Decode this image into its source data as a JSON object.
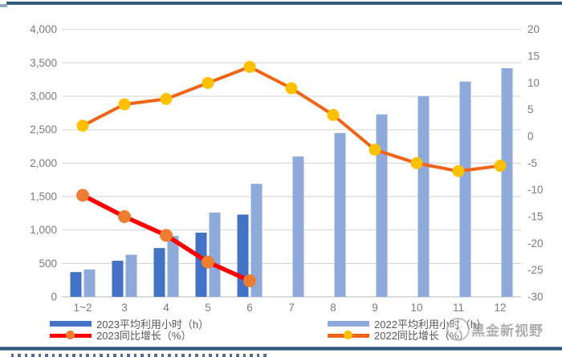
{
  "watermark": {
    "text": "黑金新视野",
    "logo": "logo"
  },
  "rules": {
    "top_color": "#33597C",
    "bottom_color": "#2F5878"
  },
  "chart_data": {
    "type": "bar",
    "subtype": "combo-bar-line-dual-axis",
    "title": "",
    "xlabel": "",
    "ylabel_left": "",
    "ylabel_right": "",
    "grid": true,
    "legend_position": "bottom",
    "categories": [
      "1~2",
      "3",
      "4",
      "5",
      "6",
      "7",
      "8",
      "9",
      "10",
      "11",
      "12"
    ],
    "left_axis": {
      "min": 0,
      "max": 4000,
      "step": 500,
      "tick_labels": [
        "4,000",
        "3,500",
        "3,000",
        "2,500",
        "2,000",
        "1,500",
        "1,000",
        "500",
        "0"
      ]
    },
    "right_axis": {
      "min": -30,
      "max": 20,
      "step": 5,
      "tick_labels": [
        "20",
        "15",
        "10",
        "5",
        "0",
        "-5",
        "-10",
        "-15",
        "-20",
        "-25",
        "-30"
      ]
    },
    "series": [
      {
        "name": "2023平均利用小时（h）",
        "type": "bar",
        "axis": "left",
        "color": "#4472C4",
        "values": [
          370,
          540,
          730,
          960,
          1230,
          null,
          null,
          null,
          null,
          null,
          null
        ]
      },
      {
        "name": "2022平均利用小时（h）",
        "type": "bar",
        "axis": "left",
        "color": "#8EAADB",
        "values": [
          410,
          630,
          910,
          1260,
          1690,
          2100,
          2450,
          2730,
          3000,
          3220,
          3420
        ]
      },
      {
        "name": "2023同比增长（%）",
        "type": "line",
        "axis": "right",
        "color": "#FE0000",
        "marker_color": "#ED7D31",
        "line_width": 5.5,
        "marker_radius": 8,
        "values": [
          -11,
          -15,
          -18.5,
          -23.5,
          -27,
          null,
          null,
          null,
          null,
          null,
          null
        ]
      },
      {
        "name": "2022同比增长（%）",
        "type": "line",
        "axis": "right",
        "color": "#F06418",
        "marker_color": "#FFC000",
        "line_width": 4,
        "marker_radius": 7.5,
        "values": [
          2,
          6,
          7,
          10,
          13,
          9,
          4,
          -2.5,
          -5,
          -6.5,
          -5.5
        ]
      }
    ],
    "colors": {
      "gridline": "#D9D9D9",
      "axis_line": "#C6C6C6",
      "tick_text": "#7C7C7C",
      "legend_text": "#595959"
    }
  }
}
